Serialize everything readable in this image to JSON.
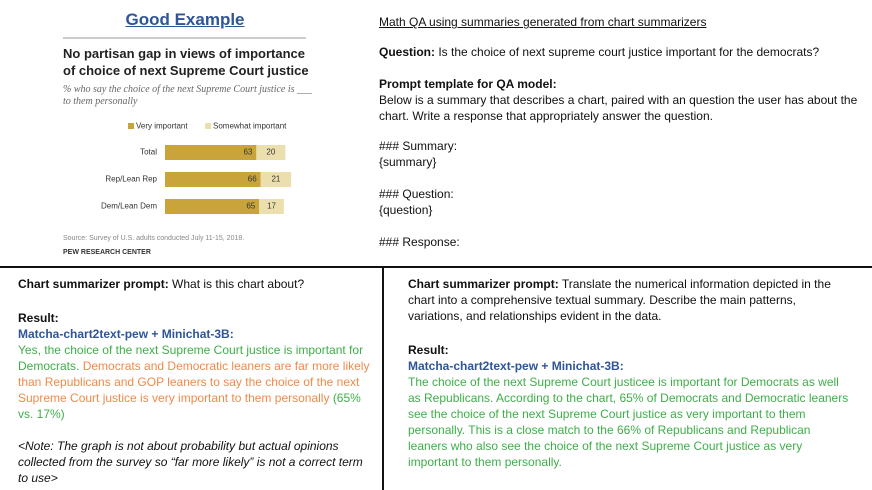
{
  "header": {
    "title": "Good Example"
  },
  "chart_data": {
    "type": "bar",
    "orientation": "horizontal",
    "stacked": true,
    "title": "No partisan gap in views of importance of choice of next Supreme Court justice",
    "subtitle": "% who say the choice of the next Supreme Court justice is ___ to them personally",
    "categories": [
      "Total",
      "Rep/Lean Rep",
      "Dem/Lean Dem"
    ],
    "series": [
      {
        "name": "Very important",
        "color": "#c8a43a",
        "values": [
          63,
          66,
          65
        ]
      },
      {
        "name": "Somewhat important",
        "color": "#ecdfae",
        "values": [
          20,
          21,
          17
        ]
      }
    ],
    "source": "Source: Survey of U.S. adults conducted July 11-15, 2018.",
    "credit": "PEW RESEARCH CENTER"
  },
  "qa_panel": {
    "title": "Math QA using summaries generated from chart summarizers",
    "question_label": "Question:",
    "question": "Is the choice of next supreme court justice important for the democrats?",
    "template_label": "Prompt template for QA model:",
    "template_text": "Below is a summary that describes a chart, paired with an question the user has about the chart. Write a response that appropriately answer the question.",
    "summary_heading": "### Summary:",
    "summary_placeholder": "{summary}",
    "question_heading": "### Question:",
    "question_placeholder": "{question}",
    "response_heading": "### Response:"
  },
  "left_result": {
    "prompt_label": "Chart summarizer prompt:",
    "prompt": "What is this chart about?",
    "result_label": "Result:",
    "model": "Matcha-chart2text-pew + Minichat-3B:",
    "correct_text": "Yes, the choice of the next Supreme Court justice is important for Democrats.",
    "incorrect_text": "Democrats and Democratic leaners are far more likely than Republicans and GOP leaners to say the choice of the next Supreme Court justice is very important to them personally",
    "correct_tail": "(65% vs. 17%)",
    "note": "<Note: The graph is not about probability but actual opinions collected from the survey so “far more likely” is not a correct term to use>"
  },
  "right_result": {
    "prompt_label": "Chart summarizer prompt:",
    "prompt": "Translate the numerical information depicted in the chart into a comprehensive textual summary. Describe the main patterns, variations, and relationships evident in the data.",
    "result_label": "Result:",
    "model": "Matcha-chart2text-pew + Minichat-3B:",
    "text": "The choice of the next Supreme Court justicee is important for Democrats as well as Republicans. According to the chart, 65% of Democrats and Democratic leaners see the choice of the next Supreme Court justice as very important to them personally. This is a close match to the 66% of Republicans and Republican leaners who also see the choice of the next Supreme Court justice as very important to them personally."
  }
}
